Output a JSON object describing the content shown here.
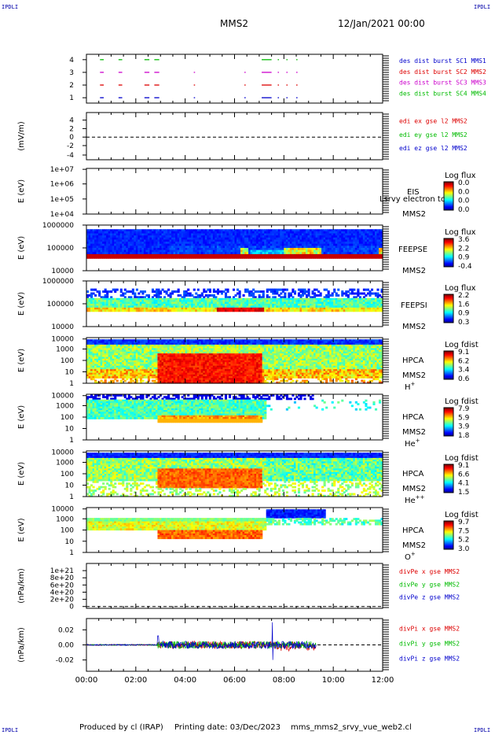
{
  "header": {
    "spacecraft": "MMS2",
    "date": "12/Jan/2021 00:00",
    "corner_label": "IPDLI"
  },
  "footer": {
    "produced_by": "Produced by cl (IRAP)",
    "printing_date": "Printing date: 03/Dec/2023",
    "file": "mms_mms2_srvy_vue_web2.cl"
  },
  "colors": {
    "mms1": "#0000cc",
    "mms2": "#dd0000",
    "mms3": "#cc00cc",
    "mms4": "#00bb00"
  },
  "chart_data": [
    {
      "type": "line",
      "panel": "burst",
      "xlim": [
        "00:00",
        "12:00"
      ],
      "yticks": [
        "1",
        "2",
        "3",
        "4"
      ],
      "legend": [
        {
          "text": "des dist burst SC1 MMS1",
          "color": "#0000cc"
        },
        {
          "text": "des dist burst SC2 MMS2",
          "color": "#dd0000"
        },
        {
          "text": "des dist burst SC3 MMS3",
          "color": "#cc00cc"
        },
        {
          "text": "des dist burst SC4 MMS4",
          "color": "#00bb00"
        }
      ],
      "series": [
        {
          "name": "des dist burst SC1 MMS1",
          "level": 1,
          "intervals": [
            [
              0.55,
              0.7
            ],
            [
              1.3,
              1.45
            ],
            [
              2.35,
              2.55
            ],
            [
              2.75,
              2.95
            ],
            [
              4.35,
              4.4
            ],
            [
              6.4,
              6.45
            ],
            [
              7.1,
              7.5
            ],
            [
              7.75,
              7.8
            ],
            [
              8.1,
              8.15
            ],
            [
              8.5,
              8.55
            ]
          ]
        },
        {
          "name": "des dist burst SC2 MMS2",
          "level": 2,
          "intervals": [
            [
              0.55,
              0.7
            ],
            [
              1.3,
              1.45
            ],
            [
              2.35,
              2.55
            ],
            [
              2.75,
              2.95
            ],
            [
              4.35,
              4.4
            ],
            [
              6.4,
              6.45
            ],
            [
              7.1,
              7.5
            ],
            [
              7.75,
              7.8
            ],
            [
              8.1,
              8.15
            ],
            [
              8.5,
              8.55
            ]
          ]
        },
        {
          "name": "des dist burst SC3 MMS3",
          "level": 3,
          "intervals": [
            [
              0.55,
              0.7
            ],
            [
              1.3,
              1.45
            ],
            [
              2.35,
              2.55
            ],
            [
              2.75,
              2.95
            ],
            [
              4.35,
              4.4
            ],
            [
              6.4,
              6.45
            ],
            [
              7.1,
              7.5
            ],
            [
              7.75,
              7.8
            ],
            [
              8.1,
              8.15
            ],
            [
              8.5,
              8.55
            ]
          ]
        },
        {
          "name": "des dist burst SC4 MMS4",
          "level": 4,
          "intervals": [
            [
              0.55,
              0.7
            ],
            [
              1.3,
              1.45
            ],
            [
              2.35,
              2.55
            ],
            [
              2.75,
              2.95
            ],
            [
              7.1,
              7.5
            ],
            [
              7.75,
              7.8
            ],
            [
              8.1,
              8.15
            ],
            [
              8.5,
              8.55
            ]
          ]
        }
      ]
    },
    {
      "type": "line",
      "panel": "edi",
      "ylabel": "(mV/m)",
      "yticks": [
        "-4",
        "-2",
        "0",
        "2",
        "4"
      ],
      "ylim": [
        -5,
        5
      ],
      "legend": [
        {
          "text": "edi ex gse l2 MMS2",
          "color": "#dd0000"
        },
        {
          "text": "edi ey gse l2 MMS2",
          "color": "#00bb00"
        },
        {
          "text": "edi ez gse l2 MMS2",
          "color": "#0000cc"
        }
      ],
      "zero_line": true
    },
    {
      "type": "heatmap",
      "panel": "eis",
      "ylabel": "E (eV)",
      "yticks": [
        "1e+04",
        "1e+05",
        "1e+06",
        "1e+07"
      ],
      "instrument": [
        "EIS",
        "MMS2"
      ],
      "overlay_text": "Lsrvy electron tc",
      "colorbar": {
        "title": "Log flux",
        "ticks": [
          "0.0",
          "0.0",
          "0.0",
          "0.0"
        ]
      },
      "data": []
    },
    {
      "type": "heatmap",
      "panel": "feeps_e",
      "ylabel": "E (eV)",
      "yticks": [
        "10000",
        "100000",
        "1000000"
      ],
      "instrument": [
        "FEEPSE",
        "MMS2"
      ],
      "colorbar": {
        "title": "Log flux",
        "ticks": [
          "3.6",
          "2.2",
          "0.9",
          "-0.4"
        ]
      },
      "data_summary": "dark-blue band 30 keV-900 keV across 00:00-12:00, red bottom row near 30 keV, green/yellow patches 08:00-09:30 and near 12:00"
    },
    {
      "type": "heatmap",
      "panel": "feeps_i",
      "ylabel": "E (eV)",
      "yticks": [
        "10000",
        "100000",
        "1000000"
      ],
      "instrument": [
        "FEEPSI",
        "MMS2"
      ],
      "colorbar": {
        "title": "Log flux",
        "ticks": [
          "2.2",
          "1.6",
          "0.9",
          "0.3"
        ]
      },
      "data_summary": "speckled blue above 150 keV, cyan/green band 50-150 keV, yellow/red strip near 60 keV around 05:20-07:10"
    },
    {
      "type": "heatmap",
      "panel": "hpca_h",
      "ylabel": "E (eV)",
      "yticks": [
        "1",
        "10",
        "100",
        "1000",
        "10000"
      ],
      "instrument": [
        "HPCA",
        "MMS2",
        "H+"
      ],
      "colorbar": {
        "title": "Log fdist",
        "ticks": [
          "9.1",
          "6.2",
          "3.4",
          "0.6"
        ]
      },
      "data_summary": "red/orange high fdist block 02:55-07:10 from 1 eV to 700 eV; green/yellow 10 eV-3 keV elsewhere; blue above 5 keV"
    },
    {
      "type": "heatmap",
      "panel": "hpca_he",
      "ylabel": "E (eV)",
      "yticks": [
        "1",
        "10",
        "100",
        "1000",
        "10000"
      ],
      "instrument": [
        "HPCA",
        "MMS2",
        "He+"
      ],
      "colorbar": {
        "title": "Log fdist",
        "ticks": [
          "7.9",
          "5.9",
          "3.9",
          "1.8"
        ]
      },
      "data_summary": "green/cyan band 100 eV-5 keV from 00:00 to 07:15; orange/yellow near 100-300 eV 02:55-07:10; sparse blue after 07:30"
    },
    {
      "type": "heatmap",
      "panel": "hpca_hepp",
      "ylabel": "E (eV)",
      "yticks": [
        "1",
        "10",
        "100",
        "1000",
        "10000"
      ],
      "instrument": [
        "HPCA",
        "MMS2",
        "He++"
      ],
      "colorbar": {
        "title": "Log fdist",
        "ticks": [
          "9.1",
          "6.6",
          "4.1",
          "1.5"
        ]
      },
      "data_summary": "orange block 02:55-07:10 from 10 eV to 1 keV; green/yellow 100 eV-3 keV elsewhere; blue above 5 keV"
    },
    {
      "type": "heatmap",
      "panel": "hpca_o",
      "ylabel": "E (eV)",
      "yticks": [
        "1",
        "10",
        "100",
        "1000",
        "10000"
      ],
      "instrument": [
        "HPCA",
        "MMS2",
        "O+"
      ],
      "colorbar": {
        "title": "Log fdist",
        "ticks": [
          "9.7",
          "7.5",
          "5.2",
          "3.0"
        ]
      },
      "data_summary": "yellow/green band 300 eV-1.5 keV 00:00-07:30; orange near 50-300 eV 02:55-07:10; blue band 2-10 keV 07:30-09:40"
    },
    {
      "type": "line",
      "panel": "divpe",
      "ylabel": "(nPa/km)",
      "yticks": [
        "0",
        "2e+20",
        "4e+20",
        "6e+20",
        "8e+20",
        "1e+21"
      ],
      "ylim": [
        0,
        1e+21
      ],
      "legend": [
        {
          "text": "divPe x gse MMS2",
          "color": "#dd0000"
        },
        {
          "text": "divPe y gse MMS2",
          "color": "#00bb00"
        },
        {
          "text": "divPe z gse MMS2",
          "color": "#0000cc"
        }
      ],
      "zero_line": true
    },
    {
      "type": "line",
      "panel": "divpi",
      "ylabel": "(nPa/km)",
      "yticks": [
        "-0.02",
        "0.00",
        "0.02"
      ],
      "ylim": [
        -0.035,
        0.035
      ],
      "xticks": [
        "00:00",
        "02:00",
        "04:00",
        "06:00",
        "08:00",
        "10:00",
        "12:00"
      ],
      "legend": [
        {
          "text": "divPi x gse MMS2",
          "color": "#dd0000"
        },
        {
          "text": "divPi y gse MMS2",
          "color": "#00bb00"
        },
        {
          "text": "divPi z gse MMS2",
          "color": "#0000cc"
        }
      ],
      "zero_line": true,
      "data_summary": "near zero 00:00-02:50; noisy |value|<0.008 from 02:50 to 09:20 with spike to +0.01 at 02:55 and +0.03/-0.02 around 07:35; no data after 09:20"
    }
  ]
}
